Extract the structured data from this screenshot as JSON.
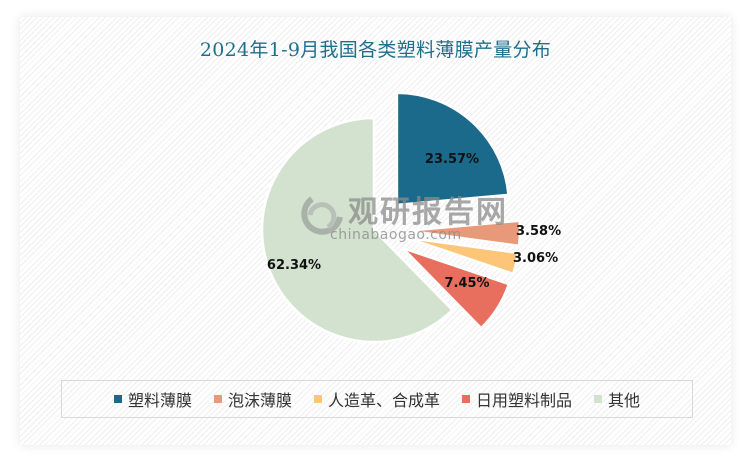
{
  "chart_data": {
    "type": "pie",
    "title": "2024年1-9月我国各类塑料薄膜产量分布",
    "categories": [
      "塑料薄膜",
      "泡沫薄膜",
      "人造革、合成革",
      "日用塑料制品",
      "其他"
    ],
    "values": [
      23.57,
      3.58,
      3.06,
      7.45,
      62.34
    ],
    "value_labels": [
      "23.57%",
      "3.58%",
      "3.06%",
      "7.45%",
      "62.34%"
    ],
    "colors": [
      "#1b6a8c",
      "#e8997a",
      "#fdc578",
      "#e86f5e",
      "#d3e2cf"
    ],
    "exploded": [
      true,
      true,
      true,
      true,
      false
    ],
    "unit": "%",
    "legend_position": "bottom"
  },
  "watermark": {
    "cn": "观研报告网",
    "en": "chinabaogao.com"
  }
}
